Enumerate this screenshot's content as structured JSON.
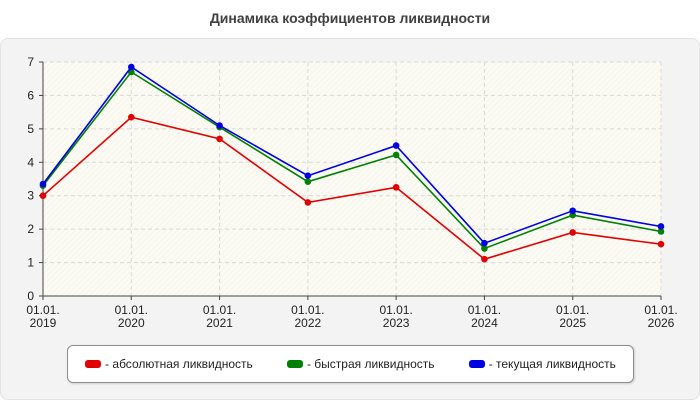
{
  "chart_data": {
    "type": "line",
    "title": "Динамика коэффициентов ликвидности",
    "xlabel": "",
    "ylabel": "",
    "categories": [
      [
        "01.01.",
        "2019"
      ],
      [
        "01.01.",
        "2020"
      ],
      [
        "01.01.",
        "2021"
      ],
      [
        "01.01.",
        "2022"
      ],
      [
        "01.01.",
        "2023"
      ],
      [
        "01.01.",
        "2024"
      ],
      [
        "01.01.",
        "2025"
      ],
      [
        "01.01.",
        "2026"
      ]
    ],
    "ylim": [
      0,
      7
    ],
    "yticks": [
      0,
      1,
      2,
      3,
      4,
      5,
      6,
      7
    ],
    "grid": true,
    "legend_position": "bottom",
    "series": [
      {
        "name": "- абсолютная ликвидность",
        "color": "#e00000",
        "values": [
          3.0,
          5.35,
          4.7,
          2.8,
          3.25,
          1.1,
          1.9,
          1.55
        ]
      },
      {
        "name": "- быстрая ликвидность",
        "color": "#008000",
        "values": [
          3.3,
          6.7,
          5.05,
          3.42,
          4.22,
          1.42,
          2.42,
          1.93
        ]
      },
      {
        "name": "- текущая ликвидность",
        "color": "#0000e0",
        "values": [
          3.35,
          6.85,
          5.1,
          3.6,
          4.5,
          1.58,
          2.55,
          2.08
        ]
      }
    ]
  }
}
